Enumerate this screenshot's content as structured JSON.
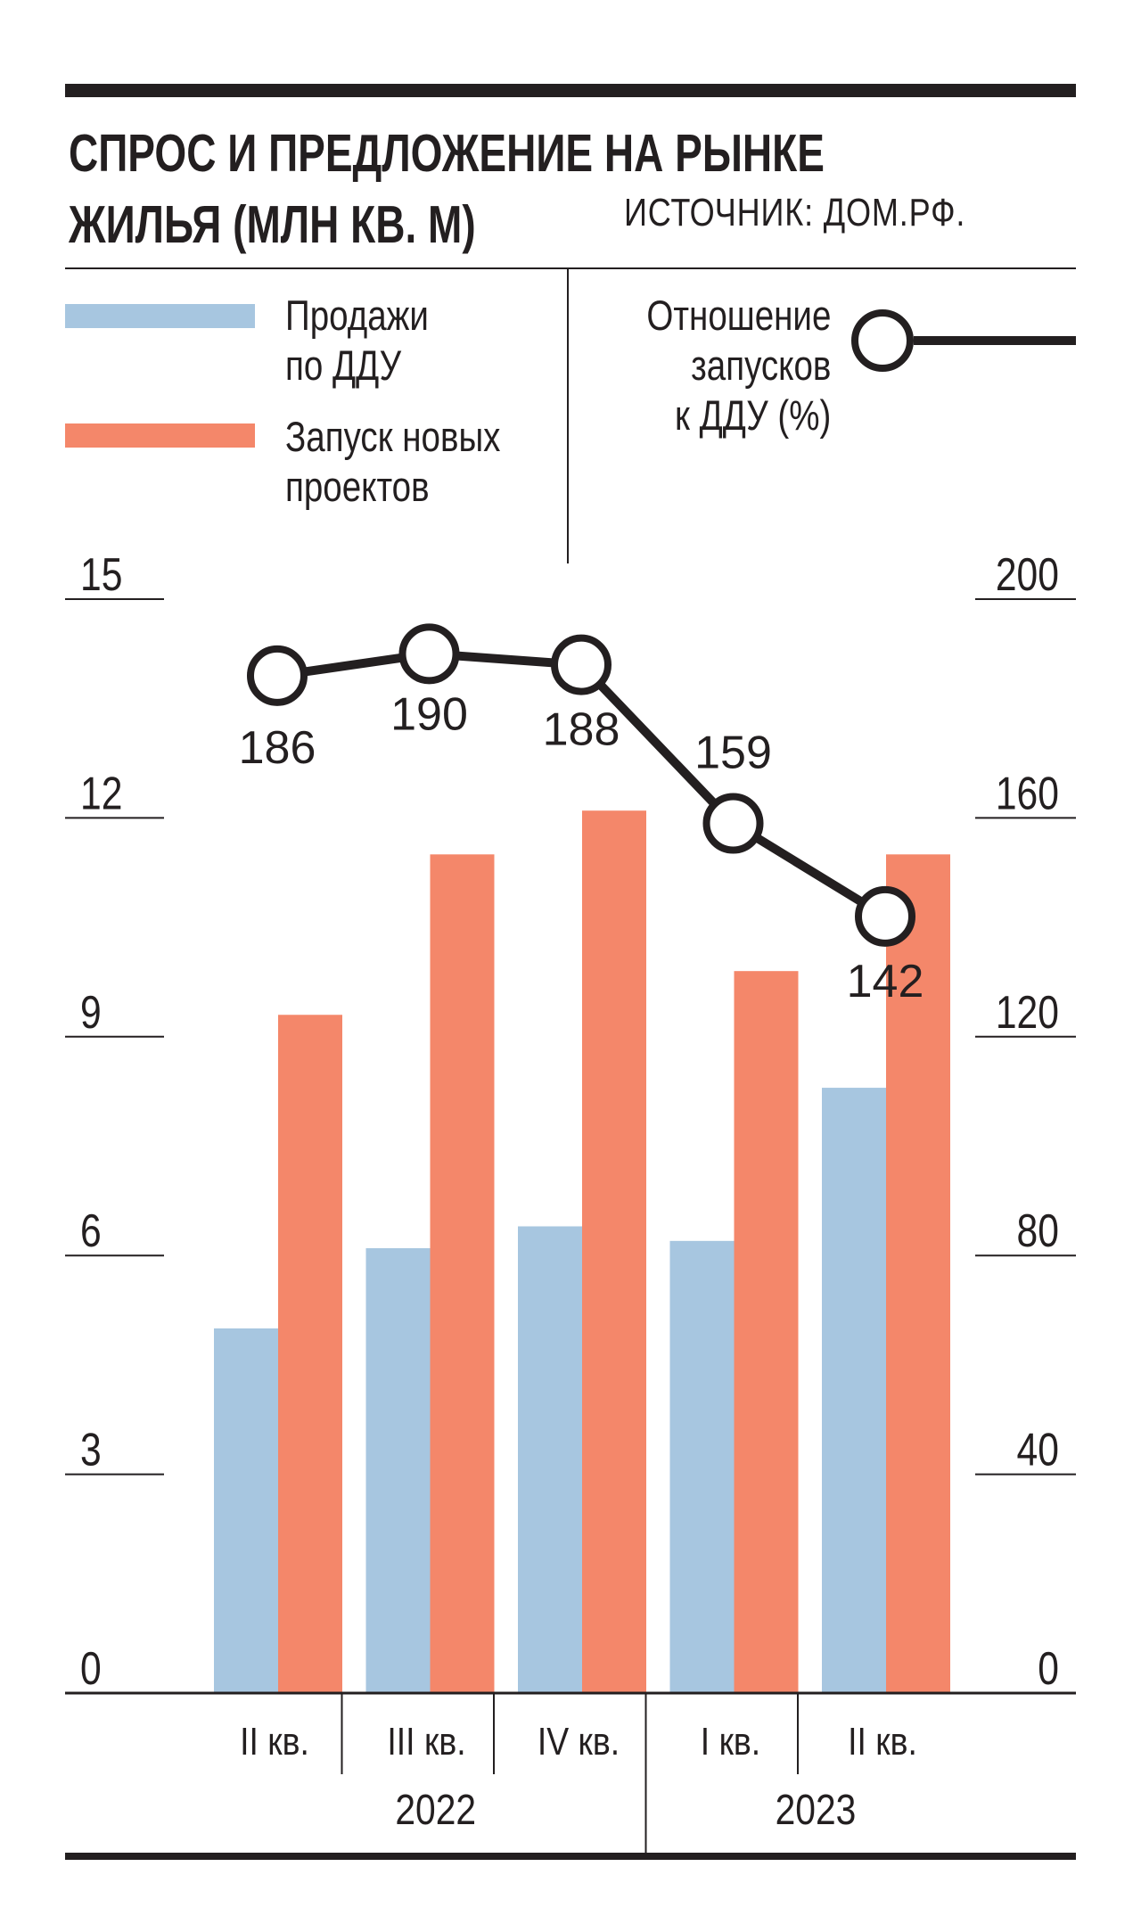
{
  "header": {
    "title_line1": "СПРОС И ПРЕДЛОЖЕНИЕ НА РЫНКЕ",
    "title_line2": "ЖИЛЬЯ (МЛН КВ. М)",
    "source": "ИСТОЧНИК: ДОМ.РФ."
  },
  "legend": {
    "sales_line1": "Продажи",
    "sales_line2": "по ДДУ",
    "launch_line1": "Запуск новых",
    "launch_line2": "проектов",
    "ratio_line1": "Отношение",
    "ratio_line2": "запусков",
    "ratio_line3": "к ДДУ (%)"
  },
  "colors": {
    "sales": "#a7c6e0",
    "launch": "#f4876a",
    "line": "#231f20",
    "grid": "#231f20"
  },
  "chart_data": {
    "type": "bar",
    "categories": [
      "II кв.",
      "III кв.",
      "IV кв.",
      "I кв.",
      "II кв."
    ],
    "year_groups": [
      {
        "label": "2022",
        "count": 3
      },
      {
        "label": "2023",
        "count": 2
      }
    ],
    "series": [
      {
        "name": "Продажи по ДДУ",
        "axis": "left",
        "values": [
          5.0,
          6.1,
          6.4,
          6.2,
          8.3
        ]
      },
      {
        "name": "Запуск новых проектов",
        "axis": "left",
        "values": [
          9.3,
          11.5,
          12.1,
          9.9,
          11.5
        ]
      },
      {
        "name": "Отношение запусков к ДДУ (%)",
        "axis": "right",
        "type": "line",
        "values": [
          186,
          190,
          188,
          159,
          142
        ]
      }
    ],
    "left_axis": {
      "ylim": [
        0,
        15
      ],
      "ticks": [
        "0",
        "3",
        "6",
        "9",
        "12",
        "15"
      ]
    },
    "right_axis": {
      "ylim": [
        0,
        200
      ],
      "ticks": [
        "0",
        "40",
        "80",
        "120",
        "160",
        "200"
      ]
    },
    "point_labels": [
      "186",
      "190",
      "188",
      "159",
      "142"
    ]
  }
}
